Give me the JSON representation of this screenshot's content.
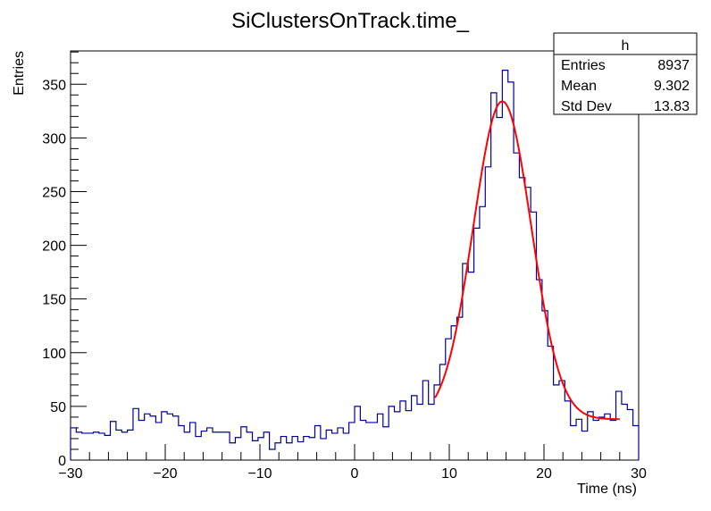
{
  "chart_data": {
    "type": "histogram",
    "title": "SiClustersOnTrack.time_",
    "xlabel": "Time (ns)",
    "ylabel": "Entries",
    "xlim": [
      -30,
      30
    ],
    "ylim": [
      0,
      381
    ],
    "x_ticks": [
      -30,
      -20,
      -10,
      0,
      10,
      20,
      30
    ],
    "y_ticks": [
      0,
      50,
      100,
      150,
      200,
      250,
      300,
      350
    ],
    "grid": false,
    "bins": 100,
    "bin_edges_range": [
      -30,
      30
    ],
    "values": [
      30,
      26,
      25,
      25,
      26,
      25,
      23,
      36,
      28,
      26,
      28,
      48,
      37,
      43,
      41,
      35,
      45,
      43,
      41,
      32,
      26,
      35,
      22,
      27,
      30,
      26,
      26,
      26,
      16,
      21,
      31,
      26,
      18,
      21,
      26,
      10,
      16,
      22,
      16,
      22,
      17,
      22,
      21,
      32,
      20,
      28,
      25,
      30,
      25,
      35,
      50,
      37,
      35,
      35,
      43,
      31,
      50,
      45,
      55,
      46,
      60,
      52,
      74,
      52,
      70,
      89,
      113,
      125,
      133,
      183,
      175,
      216,
      236,
      273,
      342,
      319,
      363,
      352,
      286,
      263,
      254,
      231,
      168,
      139,
      106,
      70,
      74,
      55,
      32,
      38,
      27,
      45,
      37,
      40,
      43,
      37,
      64,
      52,
      47,
      32
    ],
    "histogram_color": "#000099",
    "fit": {
      "function": "gaus + constant",
      "amplitude": 296,
      "mean": 15.6,
      "sigma": 3.06,
      "constant": 38,
      "range": [
        8.5,
        28
      ],
      "color": "#ff0000"
    },
    "stats_box": {
      "name": "h",
      "rows": [
        {
          "label": "Entries",
          "value": "8937"
        },
        {
          "label": "Mean",
          "value": "9.302"
        },
        {
          "label": "Std Dev",
          "value": "13.83"
        }
      ],
      "placement": "top-right"
    }
  }
}
